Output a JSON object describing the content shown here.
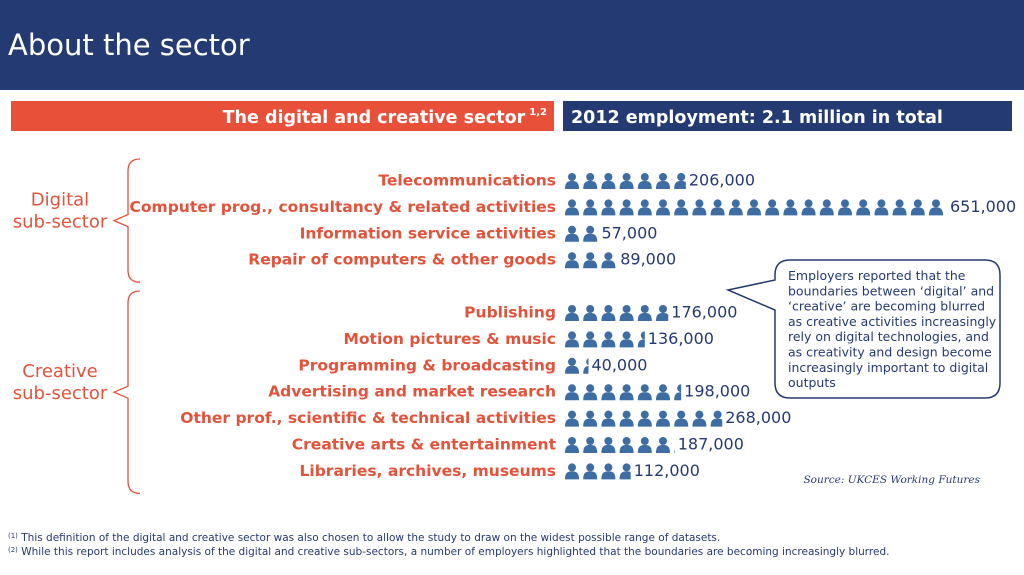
{
  "header": {
    "title": "About the sector"
  },
  "banners": {
    "left": {
      "text": "The digital and creative sector",
      "sup": "1,2"
    },
    "right": "2012 employment: 2.1 million in total"
  },
  "chart_data": {
    "type": "pictogram",
    "color": "#3d6da3",
    "groups": [
      {
        "label": [
          "Digital",
          "sub-sector"
        ],
        "categories": [
          "Telecommunications",
          "Computer prog., consultancy & related activities",
          "Information service activities",
          "Repair of computers & other goods"
        ],
        "values": [
          206000,
          651000,
          57000,
          89000
        ],
        "value_labels": [
          "206,000",
          "651,000",
          "57,000",
          "89,000"
        ]
      },
      {
        "label": [
          "Creative",
          "sub-sector"
        ],
        "categories": [
          "Publishing",
          "Motion pictures & music",
          "Programming & broadcasting",
          "Advertising and market research",
          "Other prof., scientific & technical activities",
          "Creative arts & entertainment",
          "Libraries, archives, museums"
        ],
        "values": [
          176000,
          136000,
          40000,
          198000,
          268000,
          187000,
          112000
        ],
        "value_labels": [
          "176,000",
          "136,000",
          "40,000",
          "198,000",
          "268,000",
          "187,000",
          "112,000"
        ]
      }
    ],
    "annotation": [
      "Employers reported that the",
      "boundaries between ‘digital’ and",
      "‘creative’ are becoming blurred",
      "as creative activities increasingly",
      "rely on digital technologies, and",
      "as creativity and design become",
      "increasingly important to digital",
      "outputs"
    ],
    "source": "Source: UKCES Working Futures"
  },
  "footnotes": [
    {
      "mark": "(1)",
      "text": " This definition of the digital and creative sector was also chosen to allow the study to draw on the widest possible range of datasets."
    },
    {
      "mark": "(2)",
      "text": " While this report includes analysis of the digital and creative sub-sectors, a number of employers highlighted that the boundaries are becoming increasingly blurred."
    }
  ]
}
